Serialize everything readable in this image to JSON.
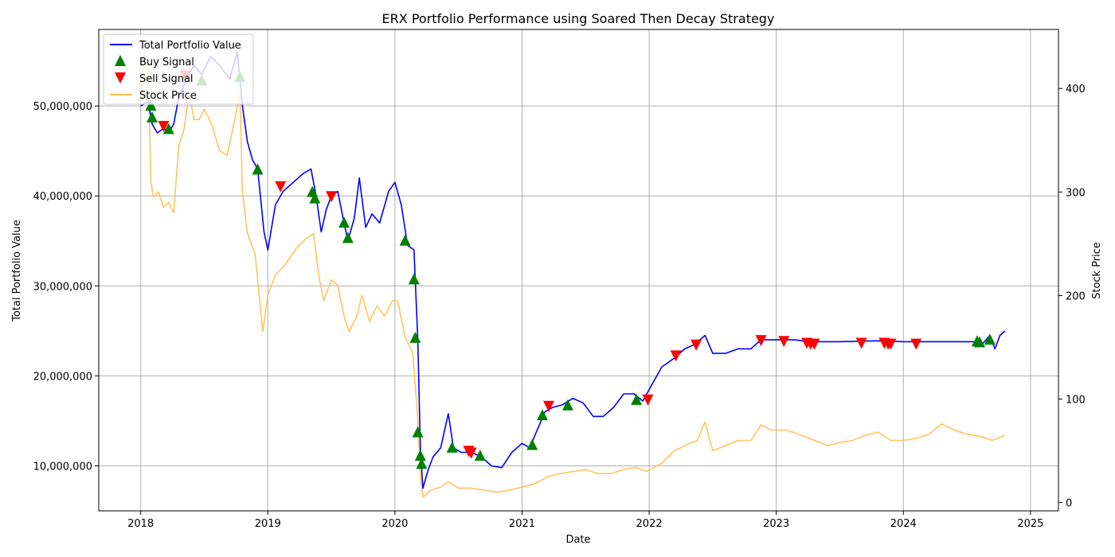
{
  "chart_data": {
    "type": "line",
    "title": "ERX Portfolio Performance using Soared Then Decay Strategy",
    "xlabel": "Date",
    "ylabel": "Total Portfolio Value",
    "y2label": "Stock Price",
    "xlim": [
      2017.67,
      2025.22
    ],
    "ylim": [
      5000000,
      58500000
    ],
    "y2lim": [
      -8,
      457
    ],
    "xticks": [
      2018,
      2019,
      2020,
      2021,
      2022,
      2023,
      2024,
      2025
    ],
    "xtick_labels": [
      "2018",
      "2019",
      "2020",
      "2021",
      "2022",
      "2023",
      "2024",
      "2025"
    ],
    "yticks": [
      10000000,
      20000000,
      30000000,
      40000000,
      50000000
    ],
    "ytick_labels": [
      "10,000,000",
      "20,000,000",
      "30,000,000",
      "40,000,000",
      "50,000,000"
    ],
    "y2ticks": [
      0,
      100,
      200,
      300,
      400
    ],
    "y2tick_labels": [
      "0",
      "100",
      "200",
      "300",
      "400"
    ],
    "grid": true,
    "legend_position": "top-left",
    "legend": [
      {
        "label": "Total Portfolio Value",
        "kind": "line",
        "color": "#0000ff"
      },
      {
        "label": "Buy Signal",
        "kind": "triangle-up",
        "color": "#008000"
      },
      {
        "label": "Sell Signal",
        "kind": "triangle-down",
        "color": "#ff0000"
      },
      {
        "label": "Stock Price",
        "kind": "line",
        "color": "#ffbf4d"
      }
    ],
    "series": [
      {
        "name": "Total Portfolio Value",
        "axis": "left",
        "color": "#0000ff",
        "points": [
          [
            2018.0,
            50000000
          ],
          [
            2018.06,
            50500000
          ],
          [
            2018.09,
            48000000
          ],
          [
            2018.13,
            47000000
          ],
          [
            2018.18,
            47500000
          ],
          [
            2018.22,
            47000000
          ],
          [
            2018.26,
            48000000
          ],
          [
            2018.3,
            51000000
          ],
          [
            2018.36,
            53000000
          ],
          [
            2018.42,
            54500000
          ],
          [
            2018.48,
            53500000
          ],
          [
            2018.55,
            55500000
          ],
          [
            2018.62,
            54500000
          ],
          [
            2018.7,
            53000000
          ],
          [
            2018.76,
            56000000
          ],
          [
            2018.8,
            50000000
          ],
          [
            2018.84,
            46000000
          ],
          [
            2018.88,
            44000000
          ],
          [
            2018.92,
            43000000
          ],
          [
            2018.97,
            36000000
          ],
          [
            2019.0,
            34000000
          ],
          [
            2019.06,
            39000000
          ],
          [
            2019.12,
            40500000
          ],
          [
            2019.2,
            41500000
          ],
          [
            2019.28,
            42500000
          ],
          [
            2019.34,
            43000000
          ],
          [
            2019.38,
            40000000
          ],
          [
            2019.42,
            36000000
          ],
          [
            2019.46,
            38500000
          ],
          [
            2019.5,
            40000000
          ],
          [
            2019.55,
            40500000
          ],
          [
            2019.6,
            37000000
          ],
          [
            2019.63,
            35000000
          ],
          [
            2019.68,
            37500000
          ],
          [
            2019.72,
            42000000
          ],
          [
            2019.77,
            36500000
          ],
          [
            2019.82,
            38000000
          ],
          [
            2019.88,
            37000000
          ],
          [
            2019.95,
            40500000
          ],
          [
            2020.0,
            41500000
          ],
          [
            2020.05,
            39000000
          ],
          [
            2020.1,
            34500000
          ],
          [
            2020.15,
            34000000
          ],
          [
            2020.18,
            24000000
          ],
          [
            2020.2,
            12000000
          ],
          [
            2020.22,
            7500000
          ],
          [
            2020.26,
            9500000
          ],
          [
            2020.3,
            11000000
          ],
          [
            2020.36,
            12000000
          ],
          [
            2020.42,
            15800000
          ],
          [
            2020.46,
            12000000
          ],
          [
            2020.52,
            11500000
          ],
          [
            2020.6,
            11500000
          ],
          [
            2020.68,
            11000000
          ],
          [
            2020.76,
            10000000
          ],
          [
            2020.84,
            9800000
          ],
          [
            2020.92,
            11500000
          ],
          [
            2021.0,
            12500000
          ],
          [
            2021.06,
            12000000
          ],
          [
            2021.12,
            14000000
          ],
          [
            2021.18,
            16000000
          ],
          [
            2021.24,
            16500000
          ],
          [
            2021.32,
            16800000
          ],
          [
            2021.4,
            17500000
          ],
          [
            2021.48,
            17000000
          ],
          [
            2021.56,
            15500000
          ],
          [
            2021.64,
            15500000
          ],
          [
            2021.72,
            16500000
          ],
          [
            2021.8,
            18000000
          ],
          [
            2021.88,
            18000000
          ],
          [
            2021.95,
            17200000
          ],
          [
            2022.02,
            19000000
          ],
          [
            2022.1,
            21000000
          ],
          [
            2022.2,
            22000000
          ],
          [
            2022.28,
            23000000
          ],
          [
            2022.36,
            23500000
          ],
          [
            2022.44,
            24500000
          ],
          [
            2022.5,
            22500000
          ],
          [
            2022.6,
            22500000
          ],
          [
            2022.7,
            23000000
          ],
          [
            2022.8,
            23000000
          ],
          [
            2022.88,
            24000000
          ],
          [
            2022.96,
            24000000
          ],
          [
            2023.05,
            24000000
          ],
          [
            2023.15,
            24000000
          ],
          [
            2023.25,
            23800000
          ],
          [
            2023.5,
            23800000
          ],
          [
            2023.8,
            23900000
          ],
          [
            2024.0,
            23800000
          ],
          [
            2024.3,
            23800000
          ],
          [
            2024.55,
            23800000
          ],
          [
            2024.62,
            23500000
          ],
          [
            2024.68,
            24500000
          ],
          [
            2024.72,
            23000000
          ],
          [
            2024.76,
            24500000
          ],
          [
            2024.8,
            25000000
          ]
        ]
      },
      {
        "name": "Stock Price",
        "axis": "right",
        "color": "#ffbf4d",
        "points": [
          [
            2018.0,
            390
          ],
          [
            2018.03,
            435
          ],
          [
            2018.06,
            420
          ],
          [
            2018.08,
            310
          ],
          [
            2018.1,
            295
          ],
          [
            2018.14,
            300
          ],
          [
            2018.18,
            285
          ],
          [
            2018.22,
            290
          ],
          [
            2018.26,
            280
          ],
          [
            2018.3,
            345
          ],
          [
            2018.34,
            360
          ],
          [
            2018.38,
            395
          ],
          [
            2018.42,
            370
          ],
          [
            2018.46,
            370
          ],
          [
            2018.5,
            380
          ],
          [
            2018.56,
            365
          ],
          [
            2018.62,
            340
          ],
          [
            2018.68,
            335
          ],
          [
            2018.74,
            370
          ],
          [
            2018.78,
            395
          ],
          [
            2018.8,
            300
          ],
          [
            2018.84,
            260
          ],
          [
            2018.9,
            240
          ],
          [
            2018.96,
            165
          ],
          [
            2019.0,
            200
          ],
          [
            2019.06,
            220
          ],
          [
            2019.14,
            230
          ],
          [
            2019.22,
            245
          ],
          [
            2019.3,
            255
          ],
          [
            2019.36,
            260
          ],
          [
            2019.4,
            220
          ],
          [
            2019.44,
            195
          ],
          [
            2019.5,
            215
          ],
          [
            2019.55,
            210
          ],
          [
            2019.6,
            180
          ],
          [
            2019.64,
            165
          ],
          [
            2019.7,
            180
          ],
          [
            2019.74,
            200
          ],
          [
            2019.8,
            175
          ],
          [
            2019.86,
            190
          ],
          [
            2019.92,
            180
          ],
          [
            2019.98,
            195
          ],
          [
            2020.02,
            195
          ],
          [
            2020.08,
            160
          ],
          [
            2020.14,
            145
          ],
          [
            2020.18,
            80
          ],
          [
            2020.2,
            25
          ],
          [
            2020.22,
            5
          ],
          [
            2020.28,
            12
          ],
          [
            2020.36,
            15
          ],
          [
            2020.42,
            20
          ],
          [
            2020.5,
            14
          ],
          [
            2020.6,
            14
          ],
          [
            2020.7,
            12
          ],
          [
            2020.8,
            10
          ],
          [
            2020.9,
            12
          ],
          [
            2021.0,
            15
          ],
          [
            2021.1,
            18
          ],
          [
            2021.2,
            25
          ],
          [
            2021.3,
            28
          ],
          [
            2021.4,
            30
          ],
          [
            2021.5,
            32
          ],
          [
            2021.6,
            28
          ],
          [
            2021.7,
            28
          ],
          [
            2021.8,
            32
          ],
          [
            2021.9,
            34
          ],
          [
            2021.98,
            30
          ],
          [
            2022.1,
            38
          ],
          [
            2022.2,
            50
          ],
          [
            2022.3,
            56
          ],
          [
            2022.38,
            60
          ],
          [
            2022.44,
            78
          ],
          [
            2022.5,
            50
          ],
          [
            2022.6,
            55
          ],
          [
            2022.7,
            60
          ],
          [
            2022.8,
            60
          ],
          [
            2022.88,
            75
          ],
          [
            2022.96,
            70
          ],
          [
            2023.08,
            70
          ],
          [
            2023.2,
            65
          ],
          [
            2023.3,
            60
          ],
          [
            2023.4,
            55
          ],
          [
            2023.5,
            58
          ],
          [
            2023.6,
            60
          ],
          [
            2023.7,
            65
          ],
          [
            2023.8,
            68
          ],
          [
            2023.9,
            60
          ],
          [
            2024.0,
            60
          ],
          [
            2024.1,
            62
          ],
          [
            2024.2,
            66
          ],
          [
            2024.3,
            76
          ],
          [
            2024.4,
            70
          ],
          [
            2024.5,
            66
          ],
          [
            2024.6,
            64
          ],
          [
            2024.7,
            60
          ],
          [
            2024.8,
            65
          ]
        ]
      },
      {
        "name": "Buy Signal",
        "axis": "left",
        "marker": "triangle-up",
        "color": "#008000",
        "points": [
          [
            2018.08,
            50000000
          ],
          [
            2018.09,
            48700000
          ],
          [
            2018.22,
            47400000
          ],
          [
            2018.48,
            52800000
          ],
          [
            2018.78,
            53200000
          ],
          [
            2018.92,
            42900000
          ],
          [
            2019.35,
            40400000
          ],
          [
            2019.37,
            39700000
          ],
          [
            2019.6,
            37000000
          ],
          [
            2019.63,
            35300000
          ],
          [
            2020.08,
            35000000
          ],
          [
            2020.15,
            30700000
          ],
          [
            2020.16,
            24200000
          ],
          [
            2020.18,
            13700000
          ],
          [
            2020.2,
            11100000
          ],
          [
            2020.21,
            10200000
          ],
          [
            2020.45,
            12000000
          ],
          [
            2020.67,
            11100000
          ],
          [
            2021.08,
            12300000
          ],
          [
            2021.16,
            15600000
          ],
          [
            2021.36,
            16700000
          ],
          [
            2021.9,
            17300000
          ],
          [
            2024.58,
            23800000
          ],
          [
            2024.6,
            23700000
          ],
          [
            2024.68,
            24000000
          ]
        ]
      },
      {
        "name": "Sell Signal",
        "axis": "left",
        "marker": "triangle-down",
        "color": "#ff0000",
        "points": [
          [
            2018.18,
            47800000
          ],
          [
            2018.35,
            53400000
          ],
          [
            2019.1,
            41100000
          ],
          [
            2019.5,
            40000000
          ],
          [
            2020.58,
            11700000
          ],
          [
            2020.6,
            11500000
          ],
          [
            2021.21,
            16700000
          ],
          [
            2021.99,
            17400000
          ],
          [
            2022.21,
            22300000
          ],
          [
            2022.37,
            23500000
          ],
          [
            2022.88,
            24000000
          ],
          [
            2023.06,
            23900000
          ],
          [
            2023.24,
            23700000
          ],
          [
            2023.27,
            23600000
          ],
          [
            2023.3,
            23600000
          ],
          [
            2023.67,
            23700000
          ],
          [
            2023.85,
            23700000
          ],
          [
            2023.88,
            23600000
          ],
          [
            2023.9,
            23600000
          ],
          [
            2024.1,
            23600000
          ]
        ]
      }
    ]
  }
}
